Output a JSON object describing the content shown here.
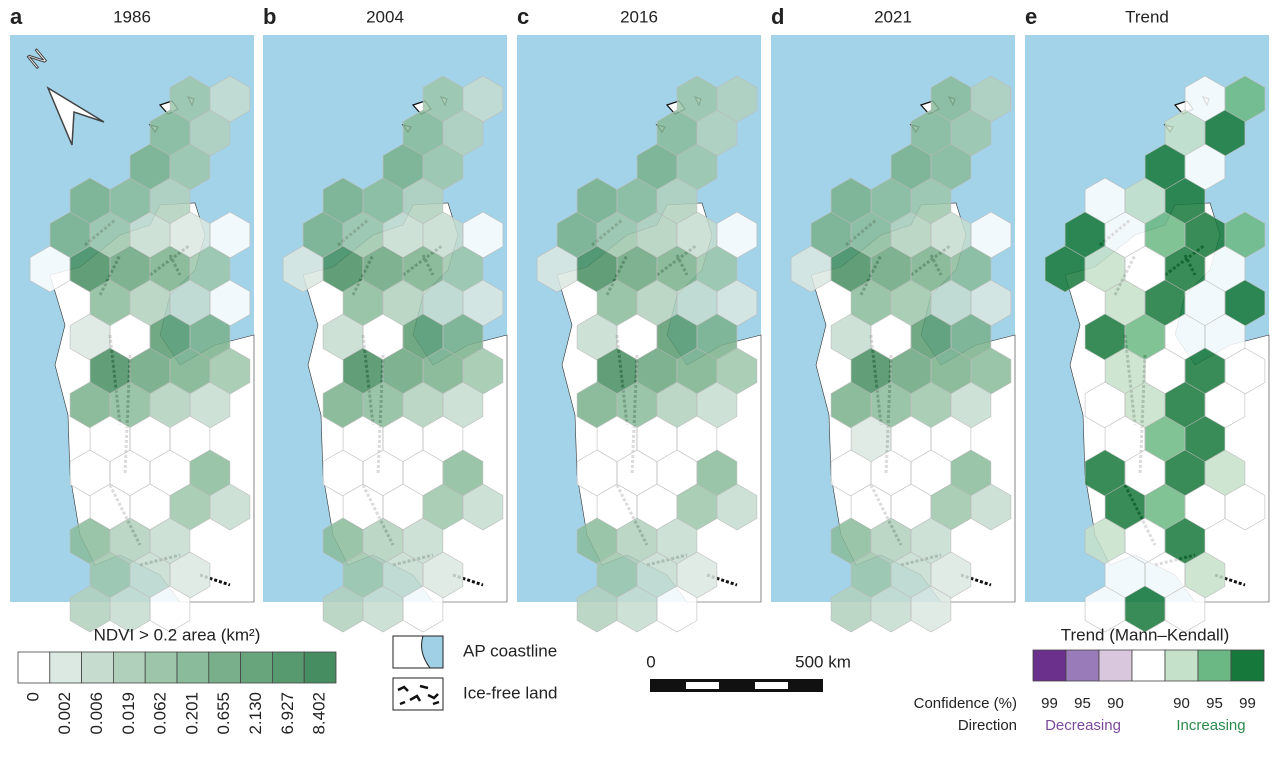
{
  "panels": [
    {
      "letter": "a",
      "title": "1986"
    },
    {
      "letter": "b",
      "title": "2004"
    },
    {
      "letter": "c",
      "title": "2016"
    },
    {
      "letter": "d",
      "title": "2021"
    },
    {
      "letter": "e",
      "title": "Trend"
    }
  ],
  "north": "N",
  "ndvi_legend": {
    "title": "NDVI > 0.2 area (km²)",
    "labels": [
      "0",
      "0.002",
      "0.006",
      "0.019",
      "0.062",
      "0.201",
      "0.655",
      "2.130",
      "6.927",
      "8.402"
    ],
    "colors": [
      "#ffffff",
      "#dce8e2",
      "#c6dccf",
      "#b0d0bc",
      "#9cc5aa",
      "#8abb9a",
      "#79b08b",
      "#68a57d",
      "#589a70",
      "#468e62"
    ]
  },
  "map_legend": {
    "coastline": "AP coastline",
    "ice_free": "Ice-free land"
  },
  "scale_bar": {
    "start": "0",
    "end": "500 km"
  },
  "trend_legend": {
    "title": "Trend (Mann–Kendall)",
    "colors": [
      "#6b2f8c",
      "#9a7bb9",
      "#d9c7dd",
      "#ffffff",
      "#c6e1c9",
      "#6cb884",
      "#16783a"
    ],
    "confidence_label": "Confidence (%)",
    "decreasing_confidence": [
      "99",
      "95",
      "90"
    ],
    "increasing_confidence": [
      "90",
      "95",
      "99"
    ],
    "direction_label": "Direction",
    "decreasing": "Decreasing",
    "increasing": "Increasing"
  }
}
